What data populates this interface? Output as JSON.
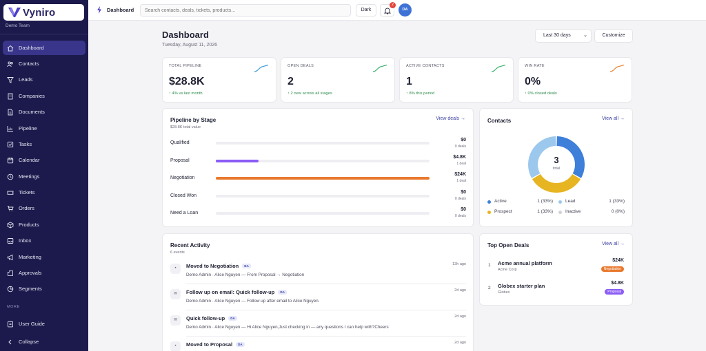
{
  "app": {
    "brand": "Vyniro",
    "team": "Demo Team"
  },
  "sidebar": {
    "items": [
      {
        "label": "Dashboard",
        "icon": "home-icon",
        "active": true
      },
      {
        "label": "Contacts",
        "icon": "contacts-icon"
      },
      {
        "label": "Leads",
        "icon": "filter-icon"
      },
      {
        "label": "Companies",
        "icon": "building-icon"
      },
      {
        "label": "Documents",
        "icon": "document-icon"
      },
      {
        "label": "Pipeline",
        "icon": "chart-icon"
      },
      {
        "label": "Tasks",
        "icon": "checkbox-icon"
      },
      {
        "label": "Calendar",
        "icon": "calendar-icon"
      },
      {
        "label": "Meetings",
        "icon": "clock-icon"
      },
      {
        "label": "Tickets",
        "icon": "ticket-icon"
      },
      {
        "label": "Orders",
        "icon": "cart-icon"
      },
      {
        "label": "Products",
        "icon": "box-icon"
      },
      {
        "label": "Inbox",
        "icon": "inbox-icon"
      },
      {
        "label": "Marketing",
        "icon": "megaphone-icon"
      },
      {
        "label": "Approvals",
        "icon": "approval-icon"
      },
      {
        "label": "Segments",
        "icon": "segments-icon"
      }
    ],
    "more_label": "MORE",
    "user_guide": "User Guide",
    "collapse": "Collapse"
  },
  "topbar": {
    "title": "Dashboard",
    "search_placeholder": "Search contacts, deals, tickets, products...",
    "dark_label": "Dark",
    "notification_count": "2",
    "avatar_initials": "DA"
  },
  "header": {
    "title": "Dashboard",
    "date": "Tuesday, August 11, 2026",
    "range": "Last 30 days",
    "customize": "Customize"
  },
  "kpis": [
    {
      "label": "TOTAL PIPELINE",
      "value": "$28.8K",
      "delta": "↑ 4% vs last month",
      "spark_color": "#3e9bd8"
    },
    {
      "label": "OPEN DEALS",
      "value": "2",
      "delta": "↑ 2 new across all stages",
      "spark_color": "#3cb371"
    },
    {
      "label": "ACTIVE CONTACTS",
      "value": "1",
      "delta": "↑ 8% this period",
      "spark_color": "#3cb371"
    },
    {
      "label": "WIN RATE",
      "value": "0%",
      "delta": "↑ 0% closed deals",
      "spark_color": "#e8853a"
    }
  ],
  "pipeline": {
    "title": "Pipeline by Stage",
    "subtitle": "$28.8K total value",
    "view_link": "View deals →",
    "stages": [
      {
        "label": "Qualified",
        "amount": "$0",
        "deals": "0 deals",
        "fill": 0,
        "color": "#8b5cf6"
      },
      {
        "label": "Proposal",
        "amount": "$4.8K",
        "deals": "1 deal",
        "fill": 0.2,
        "color": "#8b5cf6"
      },
      {
        "label": "Negotiation",
        "amount": "$24K",
        "deals": "1 deal",
        "fill": 1.0,
        "color": "#e8792e"
      },
      {
        "label": "Closed Won",
        "amount": "$0",
        "deals": "0 deals",
        "fill": 0,
        "color": "#3cb371"
      },
      {
        "label": "Need a Loan",
        "amount": "$0",
        "deals": "0 deals",
        "fill": 0,
        "color": "#3cb371"
      }
    ]
  },
  "contacts": {
    "title": "Contacts",
    "view_link": "View all →",
    "total": "3",
    "total_label": "total",
    "legend": [
      {
        "label": "Active",
        "value": "1 (33%)",
        "color": "#3e7fd9",
        "share": 0.3333
      },
      {
        "label": "Lead",
        "value": "1 (33%)",
        "color": "#9cc8ee",
        "share": 0.3333
      },
      {
        "label": "Prospect",
        "value": "1 (33%)",
        "color": "#e7b522",
        "share": 0.3333
      },
      {
        "label": "Inactive",
        "value": "0 (0%)",
        "color": "#cfd1d9",
        "share": 0
      }
    ]
  },
  "activity": {
    "title": "Recent Activity",
    "subtitle": "6 events",
    "items": [
      {
        "icon": "•",
        "title": "Moved to Negotiation",
        "badge": "DA",
        "desc": "Demo Admin · Alice Nguyen — From Proposal → Negotiation",
        "time": "13h ago"
      },
      {
        "icon": "✉",
        "title": "Follow up on email: Quick follow-up",
        "badge": "DA",
        "desc": "Demo Admin · Alice Nguyen — Follow up after email to Alice Nguyen.",
        "time": "2d ago"
      },
      {
        "icon": "✉",
        "title": "Quick follow-up",
        "badge": "DA",
        "desc": "Demo Admin · Alice Nguyen — Hi Alice Nguyen,Just checking in — any questions I can help with?Cheers",
        "time": "2d ago"
      },
      {
        "icon": "•",
        "title": "Moved to Proposal",
        "badge": "DA",
        "desc": "",
        "time": "2d ago"
      }
    ]
  },
  "top_deals": {
    "title": "Top Open Deals",
    "view_link": "View all →",
    "items": [
      {
        "num": "1",
        "name": "Acme annual platform",
        "company": "Acme Corp",
        "amount": "$24K",
        "stage": "Negotiation",
        "stage_color": "#e8792e"
      },
      {
        "num": "2",
        "name": "Globex starter plan",
        "company": "Globex",
        "amount": "$4.8K",
        "stage": "Proposal",
        "stage_color": "#8b5cf6"
      }
    ]
  }
}
